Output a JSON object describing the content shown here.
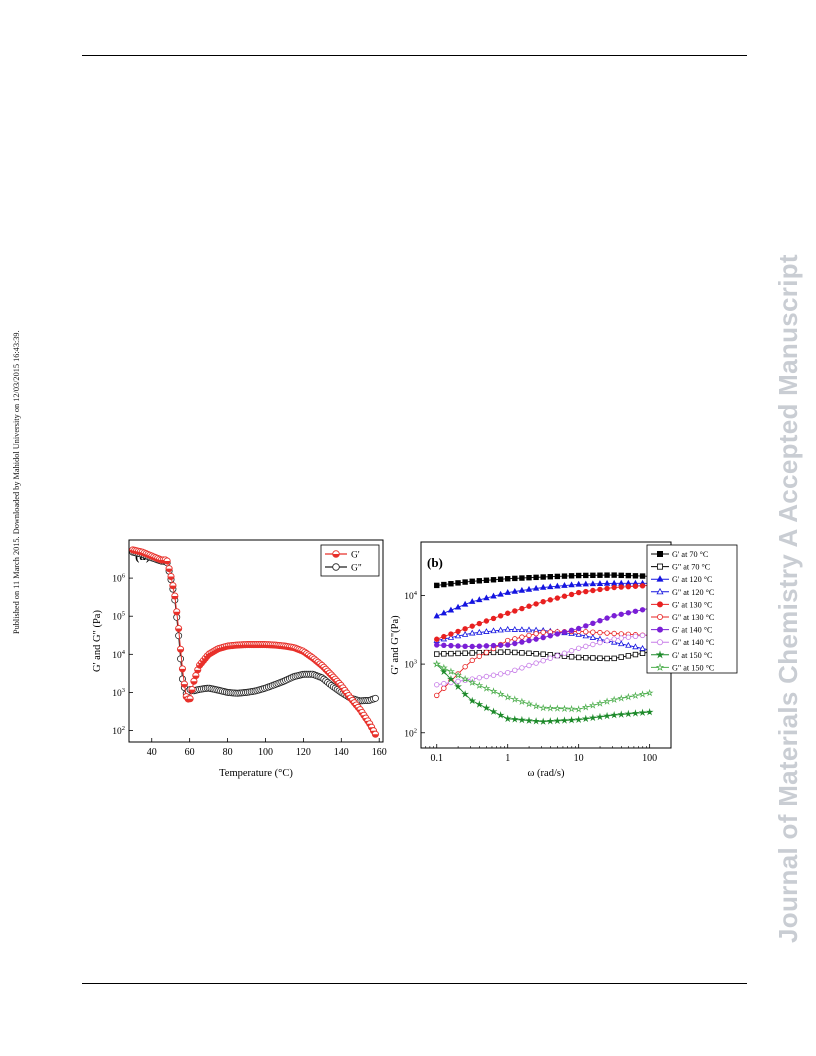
{
  "page": {
    "side_note": "Published on 11 March 2015. Downloaded by Mahidol University on 12/03/2015 16:43:39.",
    "journal_watermark": "Journal of Materials Chemistry A Accepted Manuscript"
  },
  "chart_data": [
    {
      "panel": "(a)",
      "type": "scatter",
      "xlabel": "Temperature (°C)",
      "ylabel": "G' and G\" (Pa)",
      "xlim": [
        28,
        162
      ],
      "ylim": [
        50,
        10000000
      ],
      "yscale": "log",
      "xticks": [
        40,
        60,
        80,
        100,
        120,
        140,
        160
      ],
      "ytick_labels": [
        {
          "value": 100,
          "base": "10",
          "exp": "2"
        },
        {
          "value": 1000,
          "base": "10",
          "exp": "3"
        },
        {
          "value": 10000,
          "base": "10",
          "exp": "4"
        },
        {
          "value": 100000,
          "base": "10",
          "exp": "5"
        },
        {
          "value": 1000000,
          "base": "10",
          "exp": "6"
        }
      ],
      "legend_position": "top-right",
      "series": [
        {
          "name": "G'",
          "color": "#e8302a",
          "marker": "half-filled-circle",
          "x": [
            30,
            35,
            40,
            45,
            48,
            50,
            52,
            54,
            56,
            58,
            60,
            62,
            65,
            70,
            75,
            80,
            85,
            90,
            95,
            100,
            105,
            110,
            115,
            120,
            125,
            130,
            135,
            140,
            145,
            150,
            155,
            158
          ],
          "y": [
            5500000,
            4800000,
            3800000,
            3000000,
            3000000,
            1200000,
            400000,
            60000,
            5000,
            800,
            600,
            1800,
            5000,
            10000,
            14000,
            16500,
            17500,
            18000,
            18000,
            18000,
            17500,
            16500,
            15000,
            12000,
            8000,
            5000,
            2800,
            1500,
            700,
            350,
            150,
            80
          ]
        },
        {
          "name": "G\"",
          "color": "#222222",
          "marker": "open-circle",
          "x": [
            30,
            35,
            40,
            45,
            48,
            50,
            52,
            54,
            56,
            58,
            60,
            62,
            65,
            70,
            75,
            80,
            85,
            90,
            95,
            100,
            105,
            110,
            115,
            120,
            125,
            130,
            135,
            140,
            145,
            150,
            155,
            158
          ],
          "y": [
            4800000,
            4200000,
            3400000,
            2800000,
            2700000,
            1000000,
            320000,
            40000,
            2500,
            900,
            1200,
            1100,
            1200,
            1300,
            1150,
            1000,
            950,
            1000,
            1100,
            1300,
            1600,
            2000,
            2600,
            3000,
            3000,
            2400,
            1500,
            1000,
            700,
            600,
            620,
            700
          ]
        }
      ]
    },
    {
      "panel": "(b)",
      "type": "scatter",
      "xlabel": "ω (rad/s)",
      "ylabel": "G' and G\"(Pa)",
      "xscale": "log",
      "yscale": "log",
      "xlim": [
        0.06,
        200
      ],
      "ylim": [
        60,
        60000
      ],
      "xticks": [
        0.1,
        1,
        10,
        100
      ],
      "xtick_labels": [
        "0.1",
        "1",
        "10",
        "100"
      ],
      "ytick_labels": [
        {
          "value": 100,
          "base": "10",
          "exp": "2"
        },
        {
          "value": 1000,
          "base": "10",
          "exp": "3"
        },
        {
          "value": 10000,
          "base": "10",
          "exp": "4"
        }
      ],
      "legend_position": "right",
      "series": [
        {
          "name": "G' at 70 °C",
          "color": "#000000",
          "marker": "filled-square",
          "x": [
            0.1,
            0.3,
            1,
            3,
            10,
            30,
            100
          ],
          "y": [
            14000,
            16000,
            17500,
            18500,
            19500,
            19800,
            19000
          ]
        },
        {
          "name": "G\" at 70 °C",
          "color": "#000000",
          "marker": "open-square",
          "x": [
            0.1,
            0.3,
            1,
            3,
            10,
            30,
            100
          ],
          "y": [
            1400,
            1450,
            1500,
            1400,
            1250,
            1200,
            1500
          ]
        },
        {
          "name": "G' at 120 °C",
          "color": "#1515e0",
          "marker": "filled-triangle",
          "x": [
            0.1,
            0.3,
            1,
            3,
            10,
            30,
            100
          ],
          "y": [
            5000,
            8000,
            11000,
            13000,
            14500,
            15000,
            15000
          ]
        },
        {
          "name": "G\" at 120 °C",
          "color": "#1515e0",
          "marker": "open-triangle",
          "x": [
            0.1,
            0.3,
            1,
            3,
            10,
            30,
            100
          ],
          "y": [
            2200,
            2800,
            3200,
            3100,
            2700,
            2100,
            1600
          ]
        },
        {
          "name": "G' at 130 °C",
          "color": "#e82020",
          "marker": "filled-circle",
          "x": [
            0.1,
            0.3,
            1,
            3,
            10,
            30,
            100
          ],
          "y": [
            2300,
            3500,
            5500,
            8000,
            11000,
            13000,
            14000
          ]
        },
        {
          "name": "G\" at 130 °C",
          "color": "#e82020",
          "marker": "open-circle",
          "x": [
            0.1,
            0.3,
            1,
            3,
            10,
            30,
            100
          ],
          "y": [
            350,
            1100,
            2200,
            2900,
            3000,
            2800,
            2600
          ]
        },
        {
          "name": "G' at 140 °C",
          "color": "#7a1fd6",
          "marker": "filled-circle",
          "x": [
            0.1,
            0.3,
            1,
            3,
            10,
            30,
            100
          ],
          "y": [
            1900,
            1800,
            1900,
            2400,
            3300,
            5000,
            6500
          ]
        },
        {
          "name": "G\" at 140 °C",
          "color": "#c77de8",
          "marker": "open-circle",
          "x": [
            0.1,
            0.3,
            1,
            3,
            10,
            30,
            100
          ],
          "y": [
            500,
            600,
            750,
            1100,
            1700,
            2300,
            2700
          ]
        },
        {
          "name": "G' at 150 °C",
          "color": "#1d8a2a",
          "marker": "filled-star",
          "x": [
            0.1,
            0.3,
            1,
            3,
            10,
            30,
            100
          ],
          "y": [
            1000,
            300,
            160,
            145,
            155,
            180,
            200
          ]
        },
        {
          "name": "G\" at 150 °C",
          "color": "#4cae4c",
          "marker": "open-star",
          "x": [
            0.1,
            0.3,
            1,
            3,
            10,
            30,
            100
          ],
          "y": [
            1000,
            550,
            330,
            230,
            220,
            300,
            380
          ]
        }
      ]
    }
  ]
}
